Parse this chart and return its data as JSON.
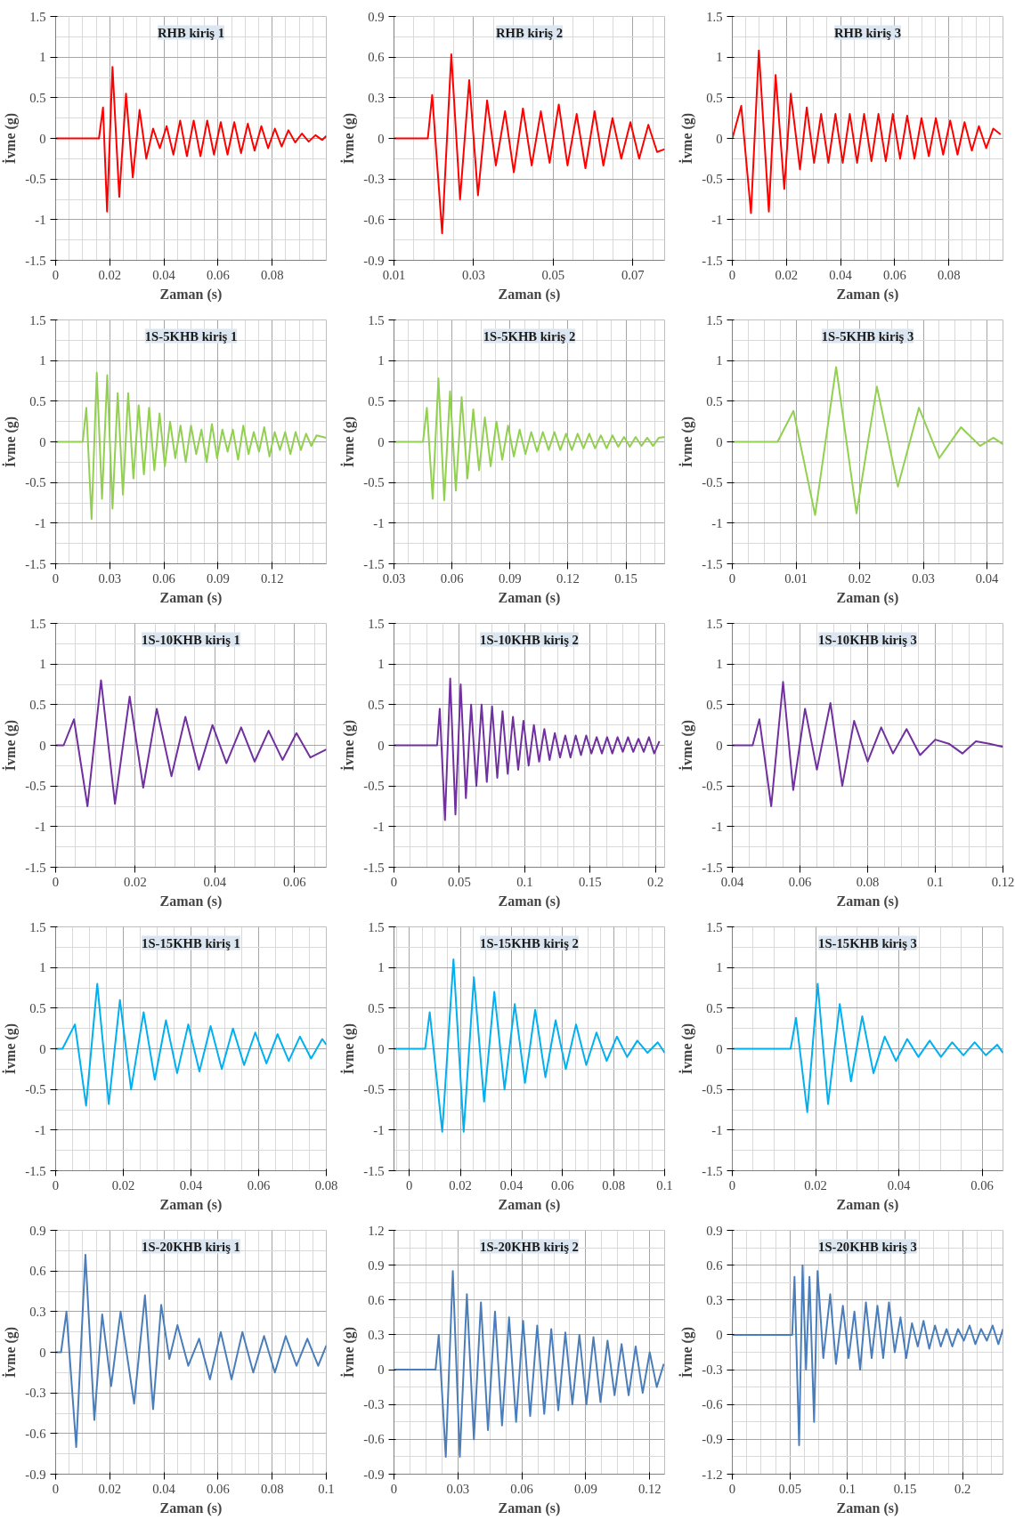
{
  "chart_data": [
    {
      "type": "line",
      "title": "RHB kiriş 1",
      "xlabel": "Zaman (s)",
      "ylabel": "İvme (g)",
      "xlim": [
        0,
        0.1
      ],
      "ylim": [
        -1.5,
        1.5
      ],
      "xticks": [
        0,
        0.02,
        0.04,
        0.06,
        0.08
      ],
      "yticks": [
        -1.5,
        -1,
        -0.5,
        0,
        0.5,
        1,
        1.5
      ],
      "grid": true,
      "series": [
        {
          "color": "#ff0000",
          "x": [
            0,
            0.016,
            0.0175,
            0.019,
            0.021,
            0.0235,
            0.026,
            0.0285,
            0.031,
            0.0335,
            0.036,
            0.0385,
            0.041,
            0.0435,
            0.046,
            0.0485,
            0.051,
            0.0535,
            0.056,
            0.0585,
            0.061,
            0.0635,
            0.066,
            0.0685,
            0.071,
            0.0735,
            0.076,
            0.0785,
            0.081,
            0.0835,
            0.086,
            0.0885,
            0.091,
            0.0935,
            0.096,
            0.0985,
            0.1
          ],
          "values": [
            0,
            0,
            0.38,
            -0.9,
            0.88,
            -0.72,
            0.55,
            -0.48,
            0.35,
            -0.25,
            0.12,
            -0.12,
            0.15,
            -0.2,
            0.22,
            -0.22,
            0.22,
            -0.22,
            0.22,
            -0.2,
            0.2,
            -0.2,
            0.2,
            -0.18,
            0.18,
            -0.15,
            0.15,
            -0.12,
            0.12,
            -0.1,
            0.1,
            -0.05,
            0.06,
            -0.04,
            0.04,
            -0.02,
            0.03
          ]
        }
      ]
    },
    {
      "type": "line",
      "title": "RHB kiriş 2",
      "xlabel": "Zaman (s)",
      "ylabel": "İvme (g)",
      "xlim": [
        0.01,
        0.078
      ],
      "ylim": [
        -0.9,
        0.9
      ],
      "xticks": [
        0.01,
        0.03,
        0.05,
        0.07
      ],
      "yticks": [
        -0.9,
        -0.6,
        -0.3,
        0,
        0.3,
        0.6,
        0.9
      ],
      "grid": true,
      "series": [
        {
          "color": "#ff0000",
          "x": [
            0.01,
            0.0185,
            0.0196,
            0.0221,
            0.0244,
            0.0266,
            0.0289,
            0.0311,
            0.0334,
            0.0356,
            0.0379,
            0.0401,
            0.0424,
            0.0446,
            0.0469,
            0.0491,
            0.0514,
            0.0536,
            0.0559,
            0.0581,
            0.0604,
            0.0626,
            0.0649,
            0.0671,
            0.0694,
            0.0716,
            0.0739,
            0.0761,
            0.078
          ],
          "values": [
            0,
            0,
            0.32,
            -0.7,
            0.62,
            -0.45,
            0.43,
            -0.42,
            0.28,
            -0.2,
            0.2,
            -0.25,
            0.22,
            -0.2,
            0.2,
            -0.18,
            0.25,
            -0.2,
            0.18,
            -0.22,
            0.2,
            -0.2,
            0.15,
            -0.15,
            0.12,
            -0.15,
            0.1,
            -0.1,
            -0.08
          ]
        }
      ]
    },
    {
      "type": "line",
      "title": "RHB kiriş 3",
      "xlabel": "Zaman (s)",
      "ylabel": "İvme (g)",
      "xlim": [
        0,
        0.1
      ],
      "ylim": [
        -1.5,
        1.5
      ],
      "xticks": [
        0,
        0.02,
        0.04,
        0.06,
        0.08
      ],
      "yticks": [
        -1.5,
        -1,
        -0.5,
        0,
        0.5,
        1,
        1.5
      ],
      "grid": true,
      "series": [
        {
          "color": "#ff0000",
          "x": [
            0,
            0.0033,
            0.0069,
            0.0098,
            0.0135,
            0.016,
            0.0192,
            0.0216,
            0.025,
            0.0275,
            0.0302,
            0.0328,
            0.0355,
            0.0381,
            0.0408,
            0.0434,
            0.0461,
            0.0487,
            0.0514,
            0.054,
            0.0567,
            0.0593,
            0.062,
            0.0646,
            0.0673,
            0.0699,
            0.0726,
            0.0752,
            0.0779,
            0.0805,
            0.0832,
            0.0858,
            0.0885,
            0.0911,
            0.0938,
            0.0964,
            0.0991
          ],
          "values": [
            0,
            0.4,
            -0.92,
            1.08,
            -0.9,
            0.78,
            -0.62,
            0.55,
            -0.38,
            0.38,
            -0.3,
            0.3,
            -0.3,
            0.3,
            -0.3,
            0.3,
            -0.3,
            0.3,
            -0.28,
            0.3,
            -0.28,
            0.3,
            -0.25,
            0.28,
            -0.25,
            0.25,
            -0.22,
            0.25,
            -0.2,
            0.22,
            -0.2,
            0.2,
            -0.15,
            0.15,
            -0.12,
            0.12,
            0.05
          ]
        }
      ]
    },
    {
      "type": "line",
      "title": "1S-5KHB kiriş 1",
      "xlabel": "Zaman (s)",
      "ylabel": "İvme (g)",
      "xlim": [
        0,
        0.15
      ],
      "ylim": [
        -1.5,
        1.5
      ],
      "xticks": [
        0,
        0.03,
        0.06,
        0.09,
        0.12
      ],
      "yticks": [
        -1.5,
        -1,
        -0.5,
        0,
        0.5,
        1,
        1.5
      ],
      "grid": true,
      "series": [
        {
          "color": "#92d050",
          "x": [
            0,
            0.015,
            0.017,
            0.0199,
            0.0228,
            0.0257,
            0.0286,
            0.0315,
            0.0344,
            0.0373,
            0.0402,
            0.0431,
            0.046,
            0.0489,
            0.0518,
            0.0547,
            0.0576,
            0.0605,
            0.0634,
            0.0663,
            0.0692,
            0.0721,
            0.075,
            0.0779,
            0.0808,
            0.0837,
            0.0866,
            0.0895,
            0.0924,
            0.0953,
            0.0982,
            0.1011,
            0.104,
            0.1069,
            0.1098,
            0.1127,
            0.1156,
            0.1185,
            0.1214,
            0.1243,
            0.1272,
            0.1301,
            0.133,
            0.1359,
            0.1388,
            0.1417,
            0.1446,
            0.15
          ],
          "values": [
            0,
            0,
            0.42,
            -0.95,
            0.85,
            -0.7,
            0.82,
            -0.82,
            0.6,
            -0.65,
            0.6,
            -0.45,
            0.45,
            -0.4,
            0.42,
            -0.35,
            0.35,
            -0.3,
            0.25,
            -0.2,
            0.2,
            -0.25,
            0.2,
            -0.15,
            0.15,
            -0.25,
            0.22,
            -0.2,
            0.15,
            -0.12,
            0.15,
            -0.22,
            0.2,
            -0.15,
            0.12,
            -0.12,
            0.18,
            -0.18,
            0.12,
            -0.1,
            0.12,
            -0.15,
            0.12,
            -0.1,
            0.1,
            -0.05,
            0.08,
            0.05
          ]
        }
      ]
    },
    {
      "type": "line",
      "title": "1S-5KHB kiriş 2",
      "xlabel": "Zaman (s)",
      "ylabel": "İvme (g)",
      "xlim": [
        0.03,
        0.17
      ],
      "ylim": [
        -1.5,
        1.5
      ],
      "xticks": [
        0.03,
        0.06,
        0.09,
        0.12,
        0.15
      ],
      "yticks": [
        -1.5,
        -1,
        -0.5,
        0,
        0.5,
        1,
        1.5
      ],
      "grid": true,
      "series": [
        {
          "color": "#92d050",
          "x": [
            0.03,
            0.045,
            0.047,
            0.05,
            0.053,
            0.056,
            0.059,
            0.062,
            0.065,
            0.068,
            0.071,
            0.074,
            0.077,
            0.08,
            0.083,
            0.086,
            0.089,
            0.092,
            0.095,
            0.098,
            0.101,
            0.104,
            0.107,
            0.11,
            0.113,
            0.116,
            0.119,
            0.122,
            0.125,
            0.128,
            0.131,
            0.134,
            0.137,
            0.14,
            0.143,
            0.146,
            0.149,
            0.152,
            0.155,
            0.158,
            0.161,
            0.164,
            0.167,
            0.17
          ],
          "values": [
            0,
            0,
            0.42,
            -0.7,
            0.78,
            -0.72,
            0.62,
            -0.6,
            0.55,
            -0.45,
            0.4,
            -0.35,
            0.3,
            -0.3,
            0.25,
            -0.22,
            0.2,
            -0.18,
            0.15,
            -0.15,
            0.12,
            -0.12,
            0.12,
            -0.1,
            0.12,
            -0.1,
            0.1,
            -0.1,
            0.1,
            -0.08,
            0.1,
            -0.08,
            0.08,
            -0.08,
            0.08,
            -0.06,
            0.06,
            -0.06,
            0.06,
            -0.05,
            0.05,
            -0.05,
            0.05,
            0.06
          ]
        }
      ]
    },
    {
      "type": "line",
      "title": "1S-5KHB kiriş 3",
      "xlabel": "Zaman (s)",
      "ylabel": "İvme (g)",
      "xlim": [
        0,
        0.0425
      ],
      "ylim": [
        -1.5,
        1.5
      ],
      "xticks": [
        0,
        0.01,
        0.02,
        0.03,
        0.04
      ],
      "yticks": [
        -1.5,
        -1,
        -0.5,
        0,
        0.5,
        1,
        1.5
      ],
      "grid": true,
      "series": [
        {
          "color": "#92d050",
          "x": [
            0,
            0.0071,
            0.0096,
            0.013,
            0.0163,
            0.0195,
            0.0227,
            0.026,
            0.0293,
            0.0325,
            0.0359,
            0.0389,
            0.041,
            0.0425
          ],
          "values": [
            0,
            0,
            0.38,
            -0.9,
            0.92,
            -0.88,
            0.68,
            -0.55,
            0.42,
            -0.2,
            0.18,
            -0.05,
            0.05,
            -0.03
          ]
        }
      ]
    },
    {
      "type": "line",
      "title": "1S-10KHB kiriş 1",
      "xlabel": "Zaman (s)",
      "ylabel": "İvme (g)",
      "xlim": [
        0,
        0.068
      ],
      "ylim": [
        -1.5,
        1.5
      ],
      "xticks": [
        0,
        0.02,
        0.04,
        0.06
      ],
      "yticks": [
        -1.5,
        -1,
        -0.5,
        0,
        0.5,
        1,
        1.5
      ],
      "grid": true,
      "series": [
        {
          "color": "#7030a0",
          "x": [
            0,
            0.002,
            0.0046,
            0.008,
            0.0114,
            0.0149,
            0.0186,
            0.022,
            0.0254,
            0.0291,
            0.0326,
            0.036,
            0.0394,
            0.0429,
            0.0466,
            0.05,
            0.0535,
            0.057,
            0.0605,
            0.064,
            0.068
          ],
          "values": [
            0,
            0,
            0.32,
            -0.75,
            0.8,
            -0.72,
            0.6,
            -0.52,
            0.45,
            -0.38,
            0.35,
            -0.3,
            0.25,
            -0.22,
            0.22,
            -0.2,
            0.18,
            -0.18,
            0.15,
            -0.15,
            -0.05
          ]
        }
      ]
    },
    {
      "type": "line",
      "title": "1S-10KHB kiriş 2",
      "xlabel": "Zaman (s)",
      "ylabel": "İvme (g)",
      "xlim": [
        0,
        0.207
      ],
      "ylim": [
        -1.5,
        1.5
      ],
      "xticks": [
        0,
        0.05,
        0.1,
        0.15,
        0.2
      ],
      "yticks": [
        -1.5,
        -1,
        -0.5,
        0,
        0.5,
        1,
        1.5
      ],
      "grid": true,
      "series": [
        {
          "color": "#7030a0",
          "x": [
            0,
            0.033,
            0.035,
            0.039,
            0.043,
            0.047,
            0.051,
            0.055,
            0.059,
            0.063,
            0.067,
            0.071,
            0.075,
            0.079,
            0.083,
            0.087,
            0.091,
            0.095,
            0.099,
            0.103,
            0.107,
            0.111,
            0.115,
            0.119,
            0.123,
            0.127,
            0.131,
            0.135,
            0.139,
            0.143,
            0.147,
            0.151,
            0.155,
            0.159,
            0.163,
            0.167,
            0.171,
            0.175,
            0.179,
            0.183,
            0.187,
            0.191,
            0.195,
            0.199,
            0.203
          ],
          "values": [
            0,
            0,
            0.45,
            -0.92,
            0.82,
            -0.85,
            0.75,
            -0.65,
            0.5,
            -0.5,
            0.5,
            -0.45,
            0.48,
            -0.4,
            0.42,
            -0.35,
            0.35,
            -0.3,
            0.3,
            -0.25,
            0.25,
            -0.2,
            0.2,
            -0.18,
            0.15,
            -0.15,
            0.12,
            -0.15,
            0.12,
            -0.12,
            0.12,
            -0.1,
            0.1,
            -0.1,
            0.1,
            -0.1,
            0.1,
            -0.08,
            0.1,
            -0.08,
            0.08,
            -0.08,
            0.1,
            -0.1,
            0.05
          ]
        }
      ]
    },
    {
      "type": "line",
      "title": "1S-10KHB kiriş 3",
      "xlabel": "Zaman (s)",
      "ylabel": "İvme (g)",
      "xlim": [
        0.04,
        0.12
      ],
      "ylim": [
        -1.5,
        1.5
      ],
      "xticks": [
        0.04,
        0.06,
        0.08,
        0.1,
        0.12
      ],
      "yticks": [
        -1.5,
        -1,
        -0.5,
        0,
        0.5,
        1,
        1.5
      ],
      "grid": true,
      "series": [
        {
          "color": "#7030a0",
          "x": [
            0.04,
            0.046,
            0.048,
            0.0515,
            0.055,
            0.058,
            0.0615,
            0.065,
            0.069,
            0.0725,
            0.076,
            0.08,
            0.084,
            0.0875,
            0.0915,
            0.0955,
            0.1,
            0.104,
            0.108,
            0.112,
            0.116,
            0.12
          ],
          "values": [
            0,
            0,
            0.32,
            -0.75,
            0.78,
            -0.55,
            0.45,
            -0.3,
            0.52,
            -0.5,
            0.3,
            -0.2,
            0.22,
            -0.1,
            0.2,
            -0.12,
            0.07,
            0.02,
            -0.1,
            0.05,
            0.02,
            -0.02
          ]
        }
      ]
    },
    {
      "type": "line",
      "title": "1S-15KHB kiriş 1",
      "xlabel": "Zaman (s)",
      "ylabel": "İvme (g)",
      "xlim": [
        0,
        0.08
      ],
      "ylim": [
        -1.5,
        1.5
      ],
      "xticks": [
        0,
        0.02,
        0.04,
        0.06,
        0.08
      ],
      "yticks": [
        -1.5,
        -1,
        -0.5,
        0,
        0.5,
        1,
        1.5
      ],
      "grid": true,
      "series": [
        {
          "color": "#00b0f0",
          "x": [
            0,
            0.002,
            0.0057,
            0.009,
            0.0123,
            0.0157,
            0.019,
            0.0223,
            0.026,
            0.0293,
            0.0326,
            0.0359,
            0.0392,
            0.0425,
            0.0458,
            0.0491,
            0.0524,
            0.0557,
            0.059,
            0.0623,
            0.0656,
            0.0689,
            0.0722,
            0.0755,
            0.0788,
            0.08
          ],
          "values": [
            0,
            0,
            0.3,
            -0.7,
            0.8,
            -0.68,
            0.6,
            -0.5,
            0.45,
            -0.38,
            0.35,
            -0.3,
            0.3,
            -0.28,
            0.28,
            -0.25,
            0.25,
            -0.2,
            0.2,
            -0.18,
            0.18,
            -0.15,
            0.15,
            -0.12,
            0.12,
            0.05
          ]
        }
      ]
    },
    {
      "type": "line",
      "title": "1S-15KHB kiriş 2",
      "xlabel": "Zaman (s)",
      "ylabel": "İvme (g)",
      "xlim": [
        -0.006,
        0.1
      ],
      "ylim": [
        -1.5,
        1.5
      ],
      "xticks": [
        0,
        0.02,
        0.04,
        0.06,
        0.08,
        0.1
      ],
      "yticks": [
        -1.5,
        -1,
        -0.5,
        0,
        0.5,
        1,
        1.5
      ],
      "grid": true,
      "series": [
        {
          "color": "#00b0f0",
          "x": [
            -0.006,
            0.0062,
            0.008,
            0.0129,
            0.0173,
            0.0213,
            0.0253,
            0.0293,
            0.0333,
            0.0373,
            0.0413,
            0.0453,
            0.0493,
            0.0533,
            0.0573,
            0.0613,
            0.0653,
            0.0693,
            0.0733,
            0.0773,
            0.0813,
            0.0853,
            0.0893,
            0.0933,
            0.0973,
            0.1
          ],
          "values": [
            0,
            0,
            0.45,
            -1.02,
            1.1,
            -1.02,
            0.88,
            -0.65,
            0.7,
            -0.5,
            0.55,
            -0.42,
            0.48,
            -0.35,
            0.35,
            -0.25,
            0.3,
            -0.2,
            0.2,
            -0.15,
            0.15,
            -0.1,
            0.1,
            -0.05,
            0.08,
            -0.05
          ]
        }
      ]
    },
    {
      "type": "line",
      "title": "1S-15KHB kiriş 3",
      "xlabel": "Zaman (s)",
      "ylabel": "İvme (g)",
      "xlim": [
        0,
        0.065
      ],
      "ylim": [
        -1.5,
        1.5
      ],
      "xticks": [
        0,
        0.02,
        0.04,
        0.06
      ],
      "yticks": [
        -1.5,
        -1,
        -0.5,
        0,
        0.5,
        1,
        1.5
      ],
      "grid": true,
      "series": [
        {
          "color": "#00b0f0",
          "x": [
            0,
            0.014,
            0.0153,
            0.018,
            0.0205,
            0.023,
            0.0258,
            0.0285,
            0.0312,
            0.0339,
            0.0366,
            0.0393,
            0.042,
            0.0447,
            0.0474,
            0.0501,
            0.0528,
            0.0555,
            0.0582,
            0.0609,
            0.0636,
            0.065
          ],
          "values": [
            0,
            0,
            0.38,
            -0.78,
            0.8,
            -0.68,
            0.55,
            -0.4,
            0.4,
            -0.3,
            0.15,
            -0.15,
            0.12,
            -0.1,
            0.1,
            -0.1,
            0.08,
            -0.08,
            0.08,
            -0.08,
            0.05,
            -0.05
          ]
        }
      ]
    },
    {
      "type": "line",
      "title": "1S-20KHB kiriş 1",
      "xlabel": "Zaman (s)",
      "ylabel": "İvme (g)",
      "xlim": [
        0,
        0.1
      ],
      "ylim": [
        -0.9,
        0.9
      ],
      "xticks": [
        0,
        0.02,
        0.04,
        0.06,
        0.08,
        0.1
      ],
      "yticks": [
        -0.9,
        -0.6,
        -0.3,
        0,
        0.3,
        0.6,
        0.9
      ],
      "grid": true,
      "series": [
        {
          "color": "#4a7ebb",
          "x": [
            0,
            0.002,
            0.004,
            0.0076,
            0.011,
            0.0143,
            0.0172,
            0.0205,
            0.024,
            0.029,
            0.033,
            0.036,
            0.039,
            0.042,
            0.045,
            0.049,
            0.053,
            0.057,
            0.061,
            0.065,
            0.069,
            0.073,
            0.077,
            0.081,
            0.085,
            0.089,
            0.093,
            0.097,
            0.1
          ],
          "values": [
            0,
            0,
            0.3,
            -0.7,
            0.72,
            -0.5,
            0.28,
            -0.25,
            0.3,
            -0.38,
            0.42,
            -0.42,
            0.35,
            -0.05,
            0.2,
            -0.1,
            0.1,
            -0.2,
            0.15,
            -0.2,
            0.15,
            -0.15,
            0.12,
            -0.15,
            0.12,
            -0.1,
            0.1,
            -0.1,
            0.05
          ]
        }
      ]
    },
    {
      "type": "line",
      "title": "1S-20KHB kiriş 2",
      "xlabel": "Zaman (s)",
      "ylabel": "İvme (g)",
      "xlim": [
        0,
        0.127
      ],
      "ylim": [
        -0.9,
        1.2
      ],
      "xticks": [
        0,
        0.03,
        0.06,
        0.09,
        0.12
      ],
      "yticks": [
        -0.9,
        -0.6,
        -0.3,
        0,
        0.3,
        0.6,
        0.9,
        1.2
      ],
      "grid": true,
      "series": [
        {
          "color": "#4a7ebb",
          "x": [
            0,
            0.0195,
            0.021,
            0.0243,
            0.0276,
            0.0309,
            0.0342,
            0.0375,
            0.0408,
            0.0441,
            0.0474,
            0.0507,
            0.054,
            0.0573,
            0.0606,
            0.0639,
            0.0672,
            0.0705,
            0.0738,
            0.0771,
            0.0804,
            0.0837,
            0.087,
            0.0903,
            0.0936,
            0.0969,
            0.1002,
            0.1035,
            0.1068,
            0.1101,
            0.1134,
            0.1167,
            0.12,
            0.1233,
            0.1266
          ],
          "values": [
            0,
            0,
            0.3,
            -0.75,
            0.85,
            -0.75,
            0.65,
            -0.6,
            0.58,
            -0.52,
            0.5,
            -0.48,
            0.45,
            -0.45,
            0.42,
            -0.4,
            0.38,
            -0.38,
            0.35,
            -0.35,
            0.32,
            -0.3,
            0.3,
            -0.3,
            0.28,
            -0.28,
            0.25,
            -0.22,
            0.22,
            -0.22,
            0.2,
            -0.2,
            0.15,
            -0.15,
            0.05
          ]
        }
      ]
    },
    {
      "type": "line",
      "title": "1S-20KHB kiriş 3",
      "xlabel": "Zaman (s)",
      "ylabel": "İvme (g)",
      "xlim": [
        0,
        0.235
      ],
      "ylim": [
        -1.2,
        0.9
      ],
      "xticks": [
        0,
        0.05,
        0.1,
        0.15,
        0.2
      ],
      "yticks": [
        -1.2,
        -0.9,
        -0.6,
        -0.3,
        0,
        0.3,
        0.6,
        0.9
      ],
      "grid": true,
      "series": [
        {
          "color": "#4a7ebb",
          "x": [
            0,
            0.052,
            0.054,
            0.058,
            0.061,
            0.064,
            0.067,
            0.071,
            0.074,
            0.079,
            0.085,
            0.09,
            0.096,
            0.101,
            0.106,
            0.111,
            0.116,
            0.121,
            0.126,
            0.131,
            0.136,
            0.141,
            0.146,
            0.151,
            0.156,
            0.161,
            0.166,
            0.171,
            0.176,
            0.181,
            0.186,
            0.191,
            0.196,
            0.201,
            0.206,
            0.211,
            0.216,
            0.221,
            0.226,
            0.231,
            0.235
          ],
          "values": [
            0,
            0,
            0.5,
            -0.95,
            0.6,
            -0.3,
            0.5,
            -0.75,
            0.55,
            -0.2,
            0.35,
            -0.25,
            0.25,
            -0.2,
            0.2,
            -0.3,
            0.28,
            -0.2,
            0.25,
            -0.2,
            0.28,
            -0.15,
            0.15,
            -0.2,
            0.1,
            -0.1,
            0.12,
            -0.12,
            0.08,
            -0.1,
            0.05,
            -0.1,
            0.05,
            -0.05,
            0.08,
            -0.08,
            0.05,
            -0.05,
            0.08,
            -0.08,
            0.05
          ]
        }
      ]
    }
  ]
}
